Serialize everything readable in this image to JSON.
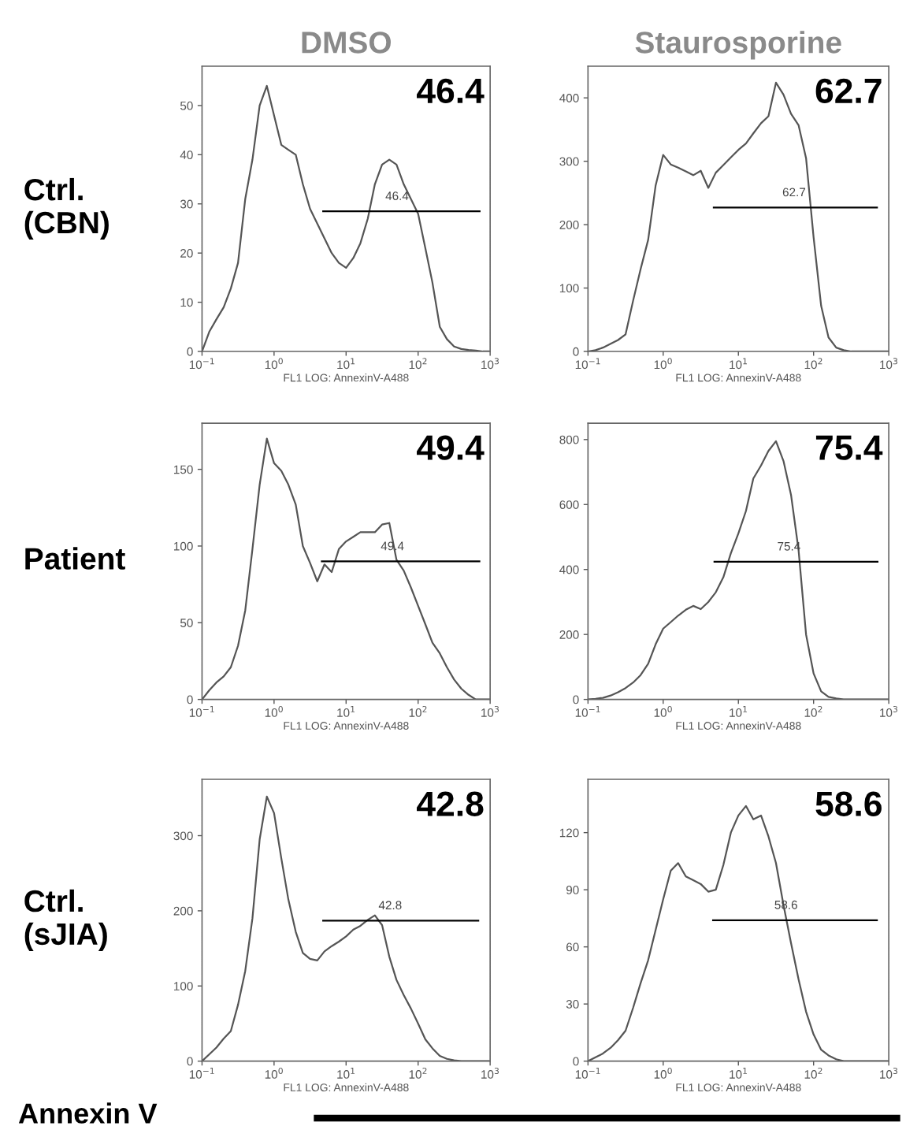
{
  "chart_data": [
    {
      "type": "line",
      "title": "DMSO",
      "ylabel": "Ctrl.\n(CBN)",
      "xlabel": "FL1 LOG: AnnexinV-A488",
      "log": "x",
      "marker": "none",
      "x": [
        0.1,
        0.126,
        0.158,
        0.2,
        0.251,
        0.316,
        0.398,
        0.501,
        0.631,
        0.794,
        1,
        1.26,
        1.58,
        2,
        2.51,
        3.16,
        3.98,
        5.01,
        6.31,
        7.94,
        10,
        12.6,
        15.8,
        20,
        25.1,
        31.6,
        39.8,
        50.1,
        63.1,
        79.4,
        100,
        126,
        158,
        200,
        251,
        316,
        398,
        501,
        631,
        794,
        1000
      ],
      "xlim": [
        0.1,
        1000
      ],
      "xticks": [
        {
          "value": 0.1,
          "label": "10$^{−1}$"
        },
        {
          "value": 1,
          "label": "10$^{0}$"
        },
        {
          "value": 10,
          "label": "10$^{1}$"
        },
        {
          "value": 100,
          "label": "10$^{2}$"
        },
        {
          "value": 1000,
          "label": "10$^{3}$"
        }
      ],
      "ylim": [
        0,
        58
      ],
      "yticks": [
        0,
        10,
        20,
        30,
        40,
        50
      ],
      "series": [
        {
          "color": "#555555",
          "values": [
            0,
            4,
            6.5,
            9,
            12.8,
            18,
            31,
            39,
            50,
            54,
            48,
            42,
            41,
            40,
            34,
            29,
            26,
            23,
            20,
            18,
            17,
            19,
            22,
            27,
            34,
            38,
            39,
            38,
            34,
            31,
            28,
            21,
            14,
            5,
            2.5,
            1,
            0.5,
            0.3,
            0.2,
            0,
            0
          ]
        },
        {
          "color": "#000000",
          "x": [
            4.8,
            715
          ],
          "values": [
            28.5,
            28.5
          ]
        }
      ],
      "annotations": [
        "46.4",
        {
          "text": "46.4",
          "x": 51,
          "y": 28.5
        }
      ]
    },
    {
      "type": "line",
      "title": "Staurosporine",
      "xlabel": "FL1 LOG: AnnexinV-A488",
      "log": "x",
      "marker": "none",
      "x": [
        0.1,
        0.126,
        0.158,
        0.2,
        0.251,
        0.316,
        0.398,
        0.501,
        0.631,
        0.794,
        1,
        1.26,
        1.58,
        2,
        2.51,
        3.16,
        3.98,
        5.01,
        6.31,
        7.94,
        10,
        12.6,
        15.8,
        20,
        25.1,
        31.6,
        39.8,
        50.1,
        63.1,
        79.4,
        100,
        126,
        158,
        200,
        251,
        316,
        398,
        501,
        631,
        794,
        1000
      ],
      "xlim": [
        0.1,
        1000
      ],
      "xticks": [
        {
          "value": 0.1,
          "label": "10$^{−1}$"
        },
        {
          "value": 1,
          "label": "10$^{0}$"
        },
        {
          "value": 10,
          "label": "10$^{1}$"
        },
        {
          "value": 100,
          "label": "10$^{2}$"
        },
        {
          "value": 1000,
          "label": "10$^{3}$"
        }
      ],
      "ylim": [
        0,
        450
      ],
      "yticks": [
        0,
        100,
        200,
        300,
        400
      ],
      "series": [
        {
          "color": "#555555",
          "values": [
            0,
            2,
            6,
            12,
            18,
            27,
            80,
            130,
            176,
            262,
            310,
            295,
            290,
            284,
            278,
            285,
            258,
            282,
            294,
            306,
            318,
            328,
            344,
            360,
            371,
            424,
            405,
            375,
            357,
            305,
            180,
            72,
            22,
            6,
            2,
            0,
            0,
            0,
            0,
            0,
            0
          ]
        },
        {
          "color": "#000000",
          "x": [
            4.7,
            697
          ],
          "values": [
            227,
            227
          ]
        }
      ],
      "annotations": [
        "62.7",
        {
          "text": "62.7",
          "x": 55,
          "y": 227
        }
      ]
    },
    {
      "type": "line",
      "ylabel": "Patient",
      "xlabel": "FL1 LOG: AnnexinV-A488",
      "log": "x",
      "marker": "none",
      "x": [
        0.1,
        0.126,
        0.158,
        0.2,
        0.251,
        0.316,
        0.398,
        0.501,
        0.631,
        0.794,
        1,
        1.26,
        1.58,
        2,
        2.51,
        3.16,
        3.98,
        5.01,
        6.31,
        7.94,
        10,
        12.6,
        15.8,
        20,
        25.1,
        31.6,
        39.8,
        50.1,
        63.1,
        79.4,
        100,
        126,
        158,
        200,
        251,
        316,
        398,
        501,
        631,
        794,
        1000
      ],
      "xlim": [
        0.1,
        1000
      ],
      "xticks": [
        {
          "value": 0.1,
          "label": "10$^{−1}$"
        },
        {
          "value": 1,
          "label": "10$^{0}$"
        },
        {
          "value": 10,
          "label": "10$^{1}$"
        },
        {
          "value": 100,
          "label": "10$^{2}$"
        },
        {
          "value": 1000,
          "label": "10$^{3}$"
        }
      ],
      "ylim": [
        0,
        180
      ],
      "yticks": [
        0,
        50,
        100,
        150
      ],
      "series": [
        {
          "color": "#555555",
          "values": [
            0,
            6,
            11,
            15,
            21,
            35,
            58,
            98,
            140,
            170,
            154,
            149,
            140,
            127,
            100,
            89,
            77,
            88,
            83,
            98,
            103,
            106,
            109,
            109,
            109,
            114,
            115,
            91,
            84,
            73,
            61,
            49,
            37,
            30,
            21,
            13,
            7,
            3,
            0,
            0,
            0
          ]
        },
        {
          "color": "#000000",
          "x": [
            4.6,
            710
          ],
          "values": [
            90,
            90
          ]
        }
      ],
      "annotations": [
        "49.4",
        {
          "text": "49.4",
          "x": 44,
          "y": 90
        }
      ]
    },
    {
      "type": "line",
      "xlabel": "FL1 LOG: AnnexinV-A488",
      "log": "x",
      "marker": "none",
      "x": [
        0.1,
        0.126,
        0.158,
        0.2,
        0.251,
        0.316,
        0.398,
        0.501,
        0.631,
        0.794,
        1,
        1.26,
        1.58,
        2,
        2.51,
        3.16,
        3.98,
        5.01,
        6.31,
        7.94,
        10,
        12.6,
        15.8,
        20,
        25.1,
        31.6,
        39.8,
        50.1,
        63.1,
        79.4,
        100,
        126,
        158,
        200,
        251,
        316,
        398,
        501,
        631,
        794,
        1000
      ],
      "xlim": [
        0.1,
        1000
      ],
      "xticks": [
        {
          "value": 0.1,
          "label": "10$^{−1}$"
        },
        {
          "value": 1,
          "label": "10$^{0}$"
        },
        {
          "value": 10,
          "label": "10$^{1}$"
        },
        {
          "value": 100,
          "label": "10$^{2}$"
        },
        {
          "value": 1000,
          "label": "10$^{3}$"
        }
      ],
      "ylim": [
        0,
        850
      ],
      "yticks": [
        0,
        200,
        400,
        600,
        800
      ],
      "series": [
        {
          "color": "#555555",
          "values": [
            0,
            2,
            5,
            12,
            22,
            35,
            52,
            75,
            110,
            170,
            218,
            238,
            258,
            276,
            288,
            278,
            300,
            330,
            376,
            450,
            511,
            580,
            680,
            720,
            765,
            795,
            734,
            630,
            460,
            200,
            80,
            25,
            8,
            3,
            0,
            0,
            0,
            0,
            0,
            0,
            0
          ]
        },
        {
          "color": "#000000",
          "x": [
            4.8,
            709
          ],
          "values": [
            424,
            424
          ]
        }
      ],
      "annotations": [
        "75.4",
        {
          "text": "75.4",
          "x": 47,
          "y": 424
        }
      ]
    },
    {
      "type": "line",
      "ylabel": "Ctrl.\n(sJIA)",
      "xlabel": "FL1 LOG: AnnexinV-A488",
      "log": "x",
      "marker": "none",
      "x": [
        0.1,
        0.126,
        0.158,
        0.2,
        0.251,
        0.316,
        0.398,
        0.501,
        0.631,
        0.794,
        1,
        1.26,
        1.58,
        2,
        2.51,
        3.16,
        3.98,
        5.01,
        6.31,
        7.94,
        10,
        12.6,
        15.8,
        20,
        25.1,
        31.6,
        39.8,
        50.1,
        63.1,
        79.4,
        100,
        126,
        158,
        200,
        251,
        316,
        398,
        501,
        631,
        794,
        1000
      ],
      "xlim": [
        0.1,
        1000
      ],
      "xticks": [
        {
          "value": 0.1,
          "label": "10$^{−1}$"
        },
        {
          "value": 1,
          "label": "10$^{0}$"
        },
        {
          "value": 10,
          "label": "10$^{1}$"
        },
        {
          "value": 100,
          "label": "10$^{2}$"
        },
        {
          "value": 1000,
          "label": "10$^{3}$"
        }
      ],
      "ylim": [
        0,
        375
      ],
      "yticks": [
        0,
        100,
        200,
        300
      ],
      "series": [
        {
          "color": "#555555",
          "values": [
            0,
            9,
            18,
            30,
            40,
            75,
            120,
            190,
            295,
            352,
            330,
            270,
            215,
            172,
            144,
            136,
            134,
            146,
            153,
            159,
            166,
            175,
            180,
            188,
            194,
            181,
            139,
            108,
            88,
            70,
            50,
            29,
            17,
            7,
            3,
            1,
            0,
            0,
            0,
            0,
            0
          ]
        },
        {
          "color": "#000000",
          "x": [
            4.8,
            685
          ],
          "values": [
            187,
            187
          ]
        }
      ],
      "annotations": [
        "42.8",
        {
          "text": "42.8",
          "x": 41,
          "y": 187
        },
        "Annexin V"
      ]
    },
    {
      "type": "line",
      "xlabel": "FL1 LOG: AnnexinV-A488",
      "log": "x",
      "marker": "none",
      "x": [
        0.1,
        0.126,
        0.158,
        0.2,
        0.251,
        0.316,
        0.398,
        0.501,
        0.631,
        0.794,
        1,
        1.26,
        1.58,
        2,
        2.51,
        3.16,
        3.98,
        5.01,
        6.31,
        7.94,
        10,
        12.6,
        15.8,
        20,
        25.1,
        31.6,
        39.8,
        50.1,
        63.1,
        79.4,
        100,
        126,
        158,
        200,
        251,
        316,
        398,
        501,
        631,
        794,
        1000
      ],
      "xlim": [
        0.1,
        1000
      ],
      "xticks": [
        {
          "value": 0.1,
          "label": "10$^{−1}$"
        },
        {
          "value": 1,
          "label": "10$^{0}$"
        },
        {
          "value": 10,
          "label": "10$^{1}$"
        },
        {
          "value": 100,
          "label": "10$^{2}$"
        },
        {
          "value": 1000,
          "label": "10$^{3}$"
        }
      ],
      "ylim": [
        0,
        148
      ],
      "yticks": [
        0,
        30,
        60,
        90,
        120
      ],
      "series": [
        {
          "color": "#555555",
          "values": [
            0,
            2,
            4,
            7,
            11,
            16,
            28,
            41,
            53,
            69,
            85,
            100,
            104,
            97,
            95,
            93,
            89,
            90,
            103,
            120,
            129,
            134,
            127,
            129,
            118,
            104,
            82,
            62,
            43,
            26,
            14,
            6,
            3,
            1,
            0,
            0,
            0,
            0,
            0,
            0,
            0
          ]
        },
        {
          "color": "#000000",
          "x": [
            4.6,
            696
          ],
          "values": [
            74,
            74
          ]
        }
      ],
      "annotations": [
        "58.6",
        {
          "text": "58.6",
          "x": 43,
          "y": 74
        }
      ]
    }
  ]
}
